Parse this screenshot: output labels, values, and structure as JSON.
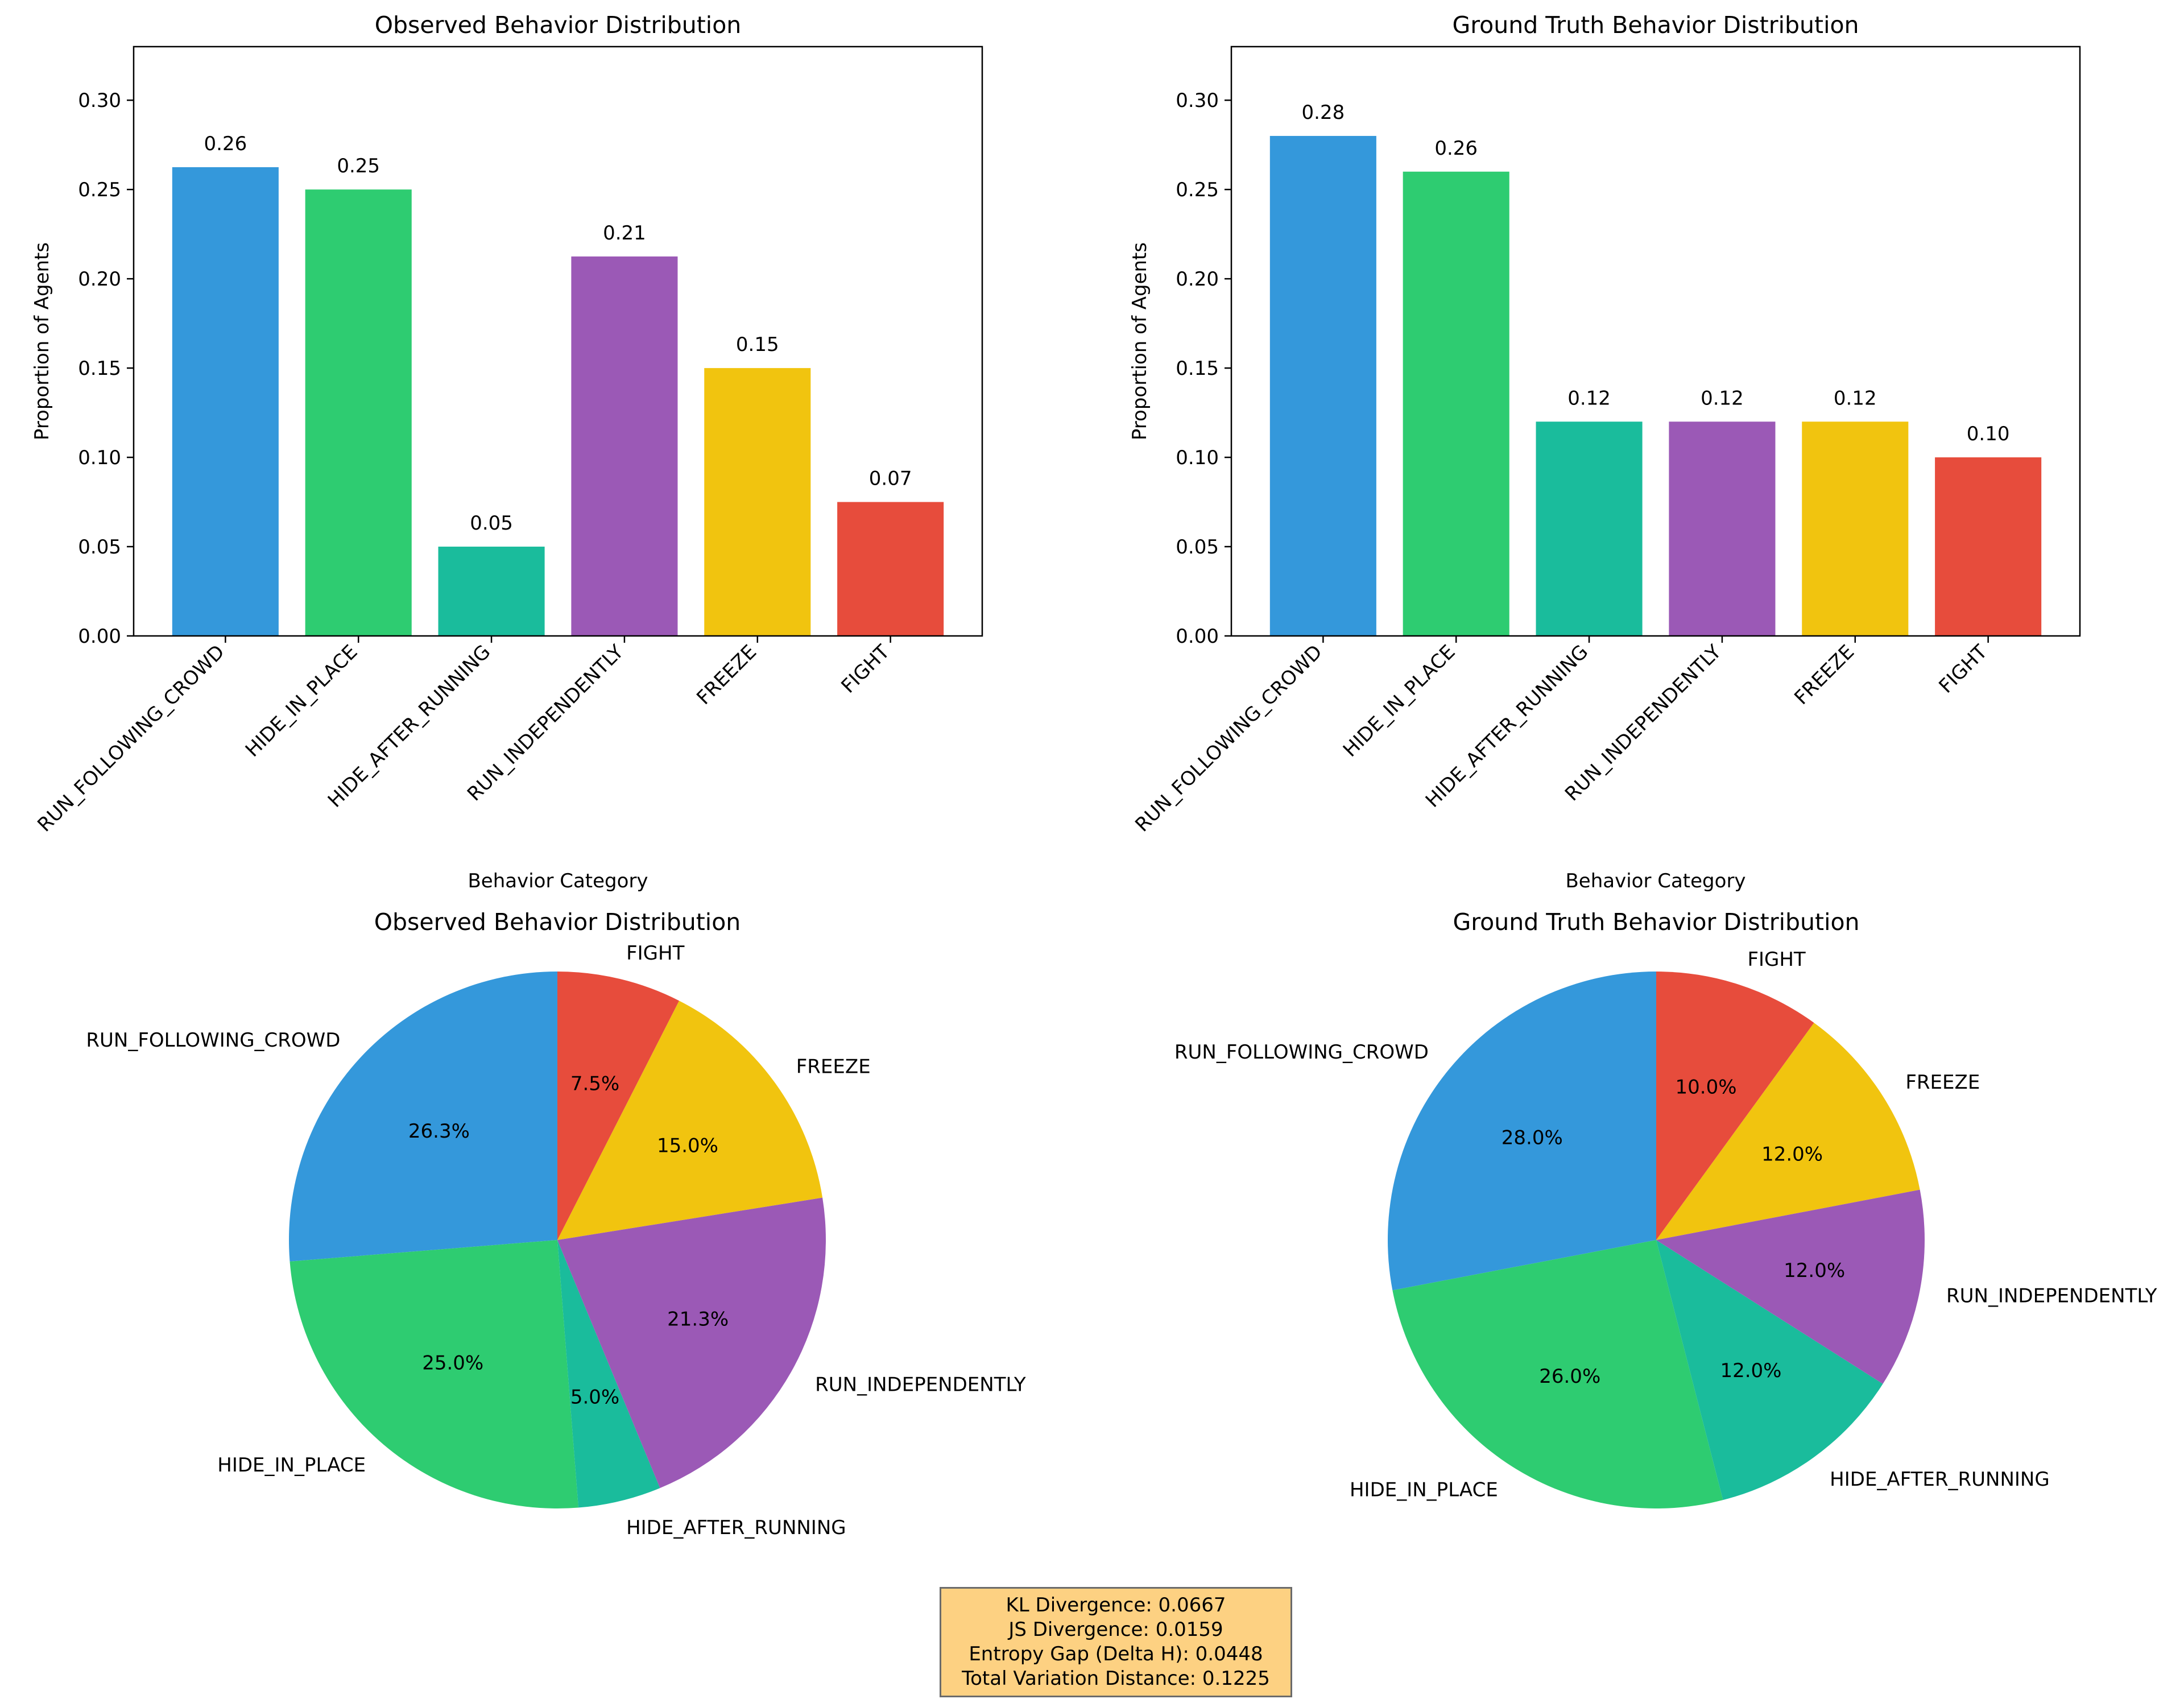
{
  "chart_data": [
    {
      "type": "bar",
      "title": "Observed Behavior Distribution",
      "xlabel": "Behavior Category",
      "ylabel": "Proportion of Agents",
      "categories": [
        "RUN_FOLLOWING_CROWD",
        "HIDE_IN_PLACE",
        "HIDE_AFTER_RUNNING",
        "RUN_INDEPENDENTLY",
        "FREEZE",
        "FIGHT"
      ],
      "values": [
        0.2625,
        0.25,
        0.05,
        0.2125,
        0.15,
        0.075
      ],
      "value_labels": [
        "0.26",
        "0.25",
        "0.05",
        "0.21",
        "0.15",
        "0.07"
      ],
      "colors": [
        "#3498db",
        "#2ecc71",
        "#1abc9c",
        "#9b59b6",
        "#f1c40f",
        "#e74c3c"
      ],
      "ylim": [
        0,
        0.33
      ],
      "yticks": [
        0.0,
        0.05,
        0.1,
        0.15,
        0.2,
        0.25,
        0.3
      ],
      "ytick_labels": [
        "0.00",
        "0.05",
        "0.10",
        "0.15",
        "0.20",
        "0.25",
        "0.30"
      ],
      "grid": false
    },
    {
      "type": "bar",
      "title": "Ground Truth Behavior Distribution",
      "xlabel": "Behavior Category",
      "ylabel": "Proportion of Agents",
      "categories": [
        "RUN_FOLLOWING_CROWD",
        "HIDE_IN_PLACE",
        "HIDE_AFTER_RUNNING",
        "RUN_INDEPENDENTLY",
        "FREEZE",
        "FIGHT"
      ],
      "values": [
        0.28,
        0.26,
        0.12,
        0.12,
        0.12,
        0.1
      ],
      "value_labels": [
        "0.28",
        "0.26",
        "0.12",
        "0.12",
        "0.12",
        "0.10"
      ],
      "colors": [
        "#3498db",
        "#2ecc71",
        "#1abc9c",
        "#9b59b6",
        "#f1c40f",
        "#e74c3c"
      ],
      "ylim": [
        0,
        0.33
      ],
      "yticks": [
        0.0,
        0.05,
        0.1,
        0.15,
        0.2,
        0.25,
        0.3
      ],
      "ytick_labels": [
        "0.00",
        "0.05",
        "0.10",
        "0.15",
        "0.20",
        "0.25",
        "0.30"
      ],
      "grid": false
    },
    {
      "type": "pie",
      "title": "Observed Behavior Distribution",
      "labels": [
        "RUN_FOLLOWING_CROWD",
        "HIDE_IN_PLACE",
        "HIDE_AFTER_RUNNING",
        "RUN_INDEPENDENTLY",
        "FREEZE",
        "FIGHT"
      ],
      "values": [
        26.3,
        25.0,
        5.0,
        21.3,
        15.0,
        7.5
      ],
      "pct_labels": [
        "26.3%",
        "25.0%",
        "5.0%",
        "21.3%",
        "15.0%",
        "7.5%"
      ],
      "colors": [
        "#3498db",
        "#2ecc71",
        "#1abc9c",
        "#9b59b6",
        "#f1c40f",
        "#e74c3c"
      ],
      "start_angle": 90,
      "direction": "counterclockwise"
    },
    {
      "type": "pie",
      "title": "Ground Truth Behavior Distribution",
      "labels": [
        "RUN_FOLLOWING_CROWD",
        "HIDE_IN_PLACE",
        "HIDE_AFTER_RUNNING",
        "RUN_INDEPENDENTLY",
        "FREEZE",
        "FIGHT"
      ],
      "values": [
        28.0,
        26.0,
        12.0,
        12.0,
        12.0,
        10.0
      ],
      "pct_labels": [
        "28.0%",
        "26.0%",
        "12.0%",
        "12.0%",
        "12.0%",
        "10.0%"
      ],
      "colors": [
        "#3498db",
        "#2ecc71",
        "#1abc9c",
        "#9b59b6",
        "#f1c40f",
        "#e74c3c"
      ],
      "start_angle": 90,
      "direction": "counterclockwise"
    }
  ],
  "metrics": {
    "kl": "KL Divergence: 0.0667",
    "js": "JS Divergence: 0.0159",
    "entropy": "Entropy Gap (Delta H): 0.0448",
    "tvd": "Total Variation Distance: 0.1225",
    "box_color": "#fdd182"
  }
}
